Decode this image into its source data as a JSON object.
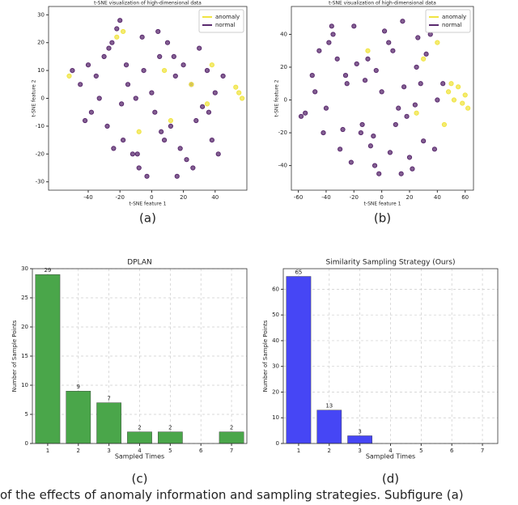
{
  "chart_data": [
    {
      "type": "scatter",
      "title": "t-SNE visualization of high-dimensional data",
      "x_label": "t-SNE feature 1",
      "y_label": "t-SNE feature 2",
      "subcaption": "(a)",
      "xlim": [
        -65,
        60
      ],
      "ylim": [
        -33,
        33
      ],
      "xticks": [
        -40,
        -20,
        0,
        20,
        40
      ],
      "yticks": [
        -30,
        -20,
        -10,
        0,
        10,
        20,
        30
      ],
      "legend": "upper right",
      "series": [
        {
          "name": "anomaly",
          "color": "#f0e442",
          "x": [
            55,
            57,
            53,
            -52,
            -22,
            8,
            12,
            -8,
            25,
            35,
            38,
            -18
          ],
          "values": [
            2,
            0,
            4,
            8,
            22,
            10,
            -8,
            -12,
            5,
            -2,
            12,
            24
          ]
        },
        {
          "name": "normal",
          "color": "#5a2a6e",
          "x": [
            -50,
            -45,
            -40,
            -38,
            -35,
            -30,
            -28,
            -25,
            -22,
            -20,
            -18,
            -15,
            -12,
            -10,
            -8,
            -5,
            -3,
            0,
            2,
            5,
            8,
            10,
            12,
            15,
            18,
            20,
            22,
            25,
            28,
            30,
            32,
            35,
            38,
            40,
            42,
            45,
            -42,
            -33,
            -24,
            -16,
            -6,
            6,
            14,
            26,
            36,
            -27,
            -19,
            -9,
            4,
            16
          ],
          "values": [
            10,
            5,
            12,
            -5,
            8,
            15,
            -10,
            20,
            25,
            28,
            -15,
            5,
            -20,
            0,
            -25,
            10,
            -28,
            2,
            -5,
            15,
            -15,
            20,
            -10,
            8,
            -18,
            12,
            -22,
            5,
            -8,
            18,
            -3,
            10,
            -15,
            2,
            -20,
            8,
            -8,
            0,
            -18,
            12,
            22,
            -12,
            15,
            -25,
            -5,
            18,
            -2,
            -20,
            24,
            -28
          ]
        }
      ]
    },
    {
      "type": "scatter",
      "title": "t-SNE visualization of high-dimensional data",
      "x_label": "t-SNE feature 1",
      "y_label": "t-SNE feature 2",
      "subcaption": "(b)",
      "xlim": [
        -65,
        66
      ],
      "ylim": [
        -55,
        57
      ],
      "xticks": [
        -60,
        -40,
        -20,
        0,
        20,
        40,
        60
      ],
      "yticks": [
        -40,
        -20,
        0,
        20,
        40
      ],
      "legend": "upper right",
      "series": [
        {
          "name": "anomaly",
          "color": "#f0e442",
          "x": [
            48,
            52,
            55,
            58,
            60,
            62,
            50,
            45,
            30,
            -10,
            25,
            40
          ],
          "values": [
            5,
            0,
            8,
            -2,
            3,
            -5,
            10,
            -15,
            25,
            30,
            -8,
            35
          ]
        },
        {
          "name": "normal",
          "color": "#5a2a6e",
          "x": [
            -58,
            -50,
            -45,
            -40,
            -35,
            -30,
            -25,
            -20,
            -15,
            -10,
            -5,
            0,
            5,
            10,
            15,
            20,
            25,
            30,
            35,
            40,
            -55,
            -42,
            -32,
            -22,
            -12,
            -2,
            8,
            18,
            28,
            38,
            -48,
            -38,
            -28,
            -18,
            -8,
            2,
            12,
            22,
            32,
            -26,
            -14,
            -4,
            6,
            16,
            26,
            -36,
            -6,
            14,
            24,
            44
          ],
          "values": [
            -10,
            15,
            30,
            -5,
            40,
            -30,
            10,
            45,
            -20,
            25,
            -40,
            5,
            35,
            -15,
            48,
            -35,
            20,
            -25,
            40,
            0,
            -8,
            -20,
            25,
            -38,
            12,
            -45,
            30,
            -10,
            10,
            -30,
            5,
            35,
            -18,
            22,
            -28,
            42,
            -5,
            -42,
            28,
            15,
            -15,
            18,
            -32,
            8,
            38,
            45,
            -22,
            -45,
            -3,
            10
          ]
        }
      ]
    },
    {
      "type": "bar",
      "title": "DPLAN",
      "x_label": "Sampled Times",
      "y_label": "Number of Sample Points",
      "subcaption": "(c)",
      "categories": [
        "1",
        "2",
        "3",
        "4",
        "5",
        "6",
        "7"
      ],
      "values": [
        29,
        9,
        7,
        2,
        2,
        0,
        2
      ],
      "value_labels": [
        "29",
        "9",
        "7",
        "2",
        "2",
        null,
        "2"
      ],
      "color": "#4aa64a",
      "ylim": [
        0,
        30
      ],
      "yticks": [
        0,
        5,
        10,
        15,
        20,
        25,
        30
      ],
      "grid": true
    },
    {
      "type": "bar",
      "title": "Similarity Sampling Strategy (Ours)",
      "x_label": "Sampled Times",
      "y_label": "Number of Sample Points",
      "subcaption": "(d)",
      "categories": [
        "1",
        "2",
        "3",
        "4",
        "5",
        "6",
        "7"
      ],
      "values": [
        65,
        13,
        3,
        0,
        0,
        0,
        0
      ],
      "value_labels": [
        "65",
        "13",
        "3",
        null,
        null,
        null,
        null
      ],
      "color": "#4646f5",
      "ylim": [
        0,
        68
      ],
      "yticks": [
        0,
        10,
        20,
        30,
        40,
        50,
        60
      ],
      "grid": true
    }
  ],
  "caption": "of the effects of anomaly information and sampling strategies. Subfigure (a)"
}
